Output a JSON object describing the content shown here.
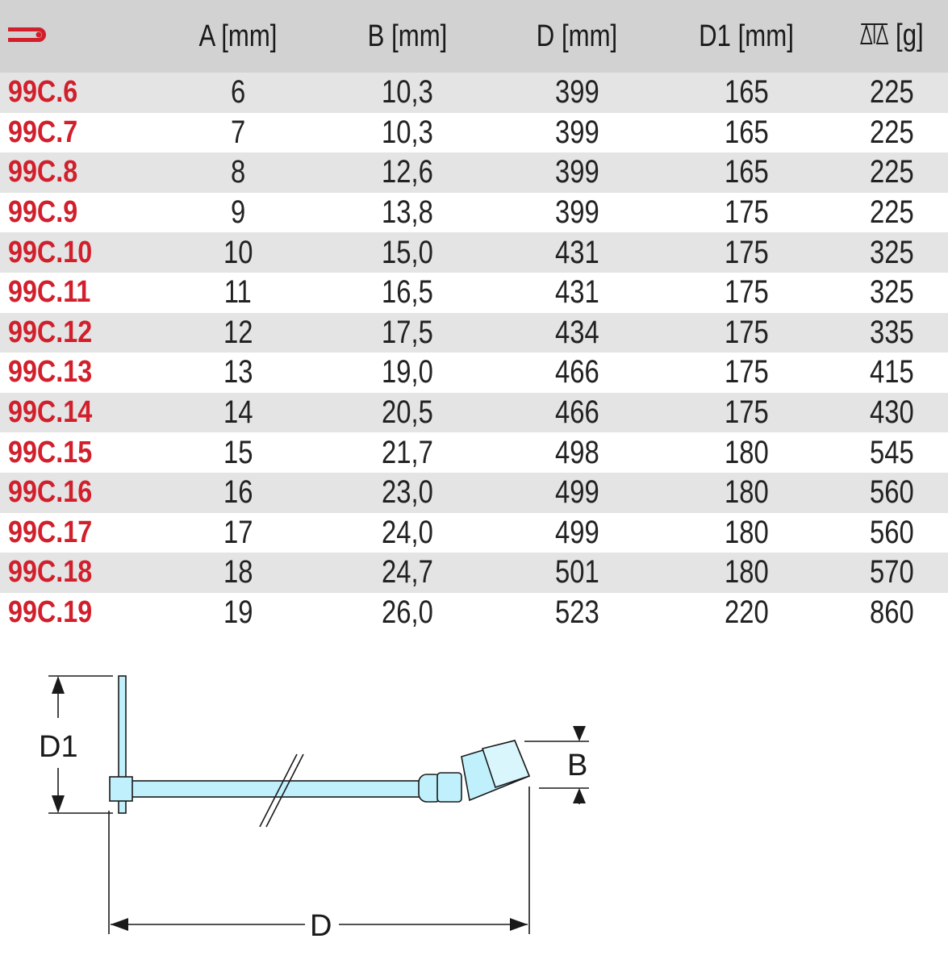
{
  "header": {
    "logo": "wrench-logo-icon",
    "columns": [
      "A [mm]",
      "B [mm]",
      "D [mm]",
      "D1 [mm]",
      "[g]"
    ],
    "weight_icon": "balance-scale-icon"
  },
  "rows": [
    {
      "code": "99C.6",
      "a": "6",
      "b": "10,3",
      "d": "399",
      "d1": "165",
      "g": "225"
    },
    {
      "code": "99C.7",
      "a": "7",
      "b": "10,3",
      "d": "399",
      "d1": "165",
      "g": "225"
    },
    {
      "code": "99C.8",
      "a": "8",
      "b": "12,6",
      "d": "399",
      "d1": "165",
      "g": "225"
    },
    {
      "code": "99C.9",
      "a": "9",
      "b": "13,8",
      "d": "399",
      "d1": "175",
      "g": "225"
    },
    {
      "code": "99C.10",
      "a": "10",
      "b": "15,0",
      "d": "431",
      "d1": "175",
      "g": "325"
    },
    {
      "code": "99C.11",
      "a": "11",
      "b": "16,5",
      "d": "431",
      "d1": "175",
      "g": "325"
    },
    {
      "code": "99C.12",
      "a": "12",
      "b": "17,5",
      "d": "434",
      "d1": "175",
      "g": "335"
    },
    {
      "code": "99C.13",
      "a": "13",
      "b": "19,0",
      "d": "466",
      "d1": "175",
      "g": "415"
    },
    {
      "code": "99C.14",
      "a": "14",
      "b": "20,5",
      "d": "466",
      "d1": "175",
      "g": "430"
    },
    {
      "code": "99C.15",
      "a": "15",
      "b": "21,7",
      "d": "498",
      "d1": "180",
      "g": "545"
    },
    {
      "code": "99C.16",
      "a": "16",
      "b": "23,0",
      "d": "499",
      "d1": "180",
      "g": "560"
    },
    {
      "code": "99C.17",
      "a": "17",
      "b": "24,0",
      "d": "499",
      "d1": "180",
      "g": "560"
    },
    {
      "code": "99C.18",
      "a": "18",
      "b": "24,7",
      "d": "501",
      "d1": "180",
      "g": "570"
    },
    {
      "code": "99C.19",
      "a": "19",
      "b": "26,0",
      "d": "523",
      "d1": "220",
      "g": "860"
    }
  ],
  "diagram": {
    "label_d1": "D1",
    "label_b": "B",
    "label_d": "D"
  },
  "colors": {
    "code_red": "#d11f2b",
    "tool_cyan": "#bff0fb",
    "header_gray": "#d2d2d2",
    "stripe_gray": "#e4e4e4"
  }
}
